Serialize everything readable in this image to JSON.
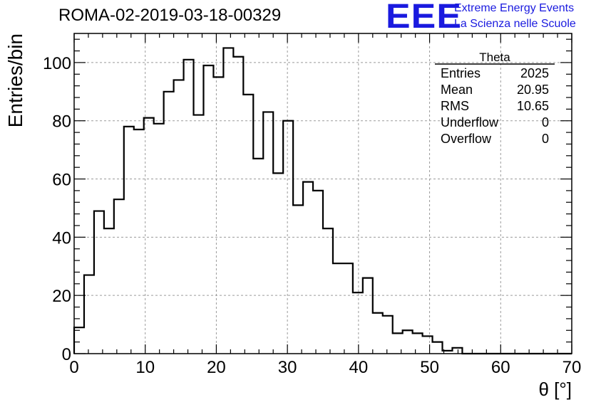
{
  "header": {
    "run_title": "ROMA-02-2019-03-18-00329",
    "logo_text": "EEE",
    "logo_line1": "Extreme Energy Events",
    "logo_line2": "La Scienza nelle Scuole"
  },
  "stats": {
    "title": "Theta",
    "rows": [
      {
        "label": "Entries",
        "value": "2025"
      },
      {
        "label": "Mean",
        "value": "20.95"
      },
      {
        "label": "RMS",
        "value": "10.65"
      },
      {
        "label": "Underflow",
        "value": "0"
      },
      {
        "label": "Overflow",
        "value": "0"
      }
    ]
  },
  "colors": {
    "logo": "#1a1adf",
    "line": "#000000",
    "grid": "#9a9a9a"
  },
  "chart_data": {
    "type": "histogram",
    "title": "ROMA-02-2019-03-18-00329",
    "xlabel": "θ [°]",
    "ylabel": "Entries/bin",
    "xlim": [
      0,
      70
    ],
    "ylim": [
      0,
      110
    ],
    "x_ticks": [
      0,
      10,
      20,
      30,
      40,
      50,
      60,
      70
    ],
    "y_ticks": [
      0,
      20,
      40,
      60,
      80,
      100
    ],
    "grid": true,
    "bin_width": 1.4,
    "x_start": 0,
    "values": [
      9,
      27,
      49,
      43,
      53,
      78,
      77,
      81,
      79,
      90,
      94,
      101,
      82,
      99,
      95,
      105,
      102,
      89,
      67,
      83,
      62,
      80,
      51,
      59,
      56,
      43,
      31,
      31,
      21,
      26,
      14,
      13,
      7,
      8,
      7,
      6,
      4,
      1,
      2,
      0,
      0,
      0,
      0,
      0,
      0,
      0,
      0,
      0,
      0,
      0
    ]
  }
}
